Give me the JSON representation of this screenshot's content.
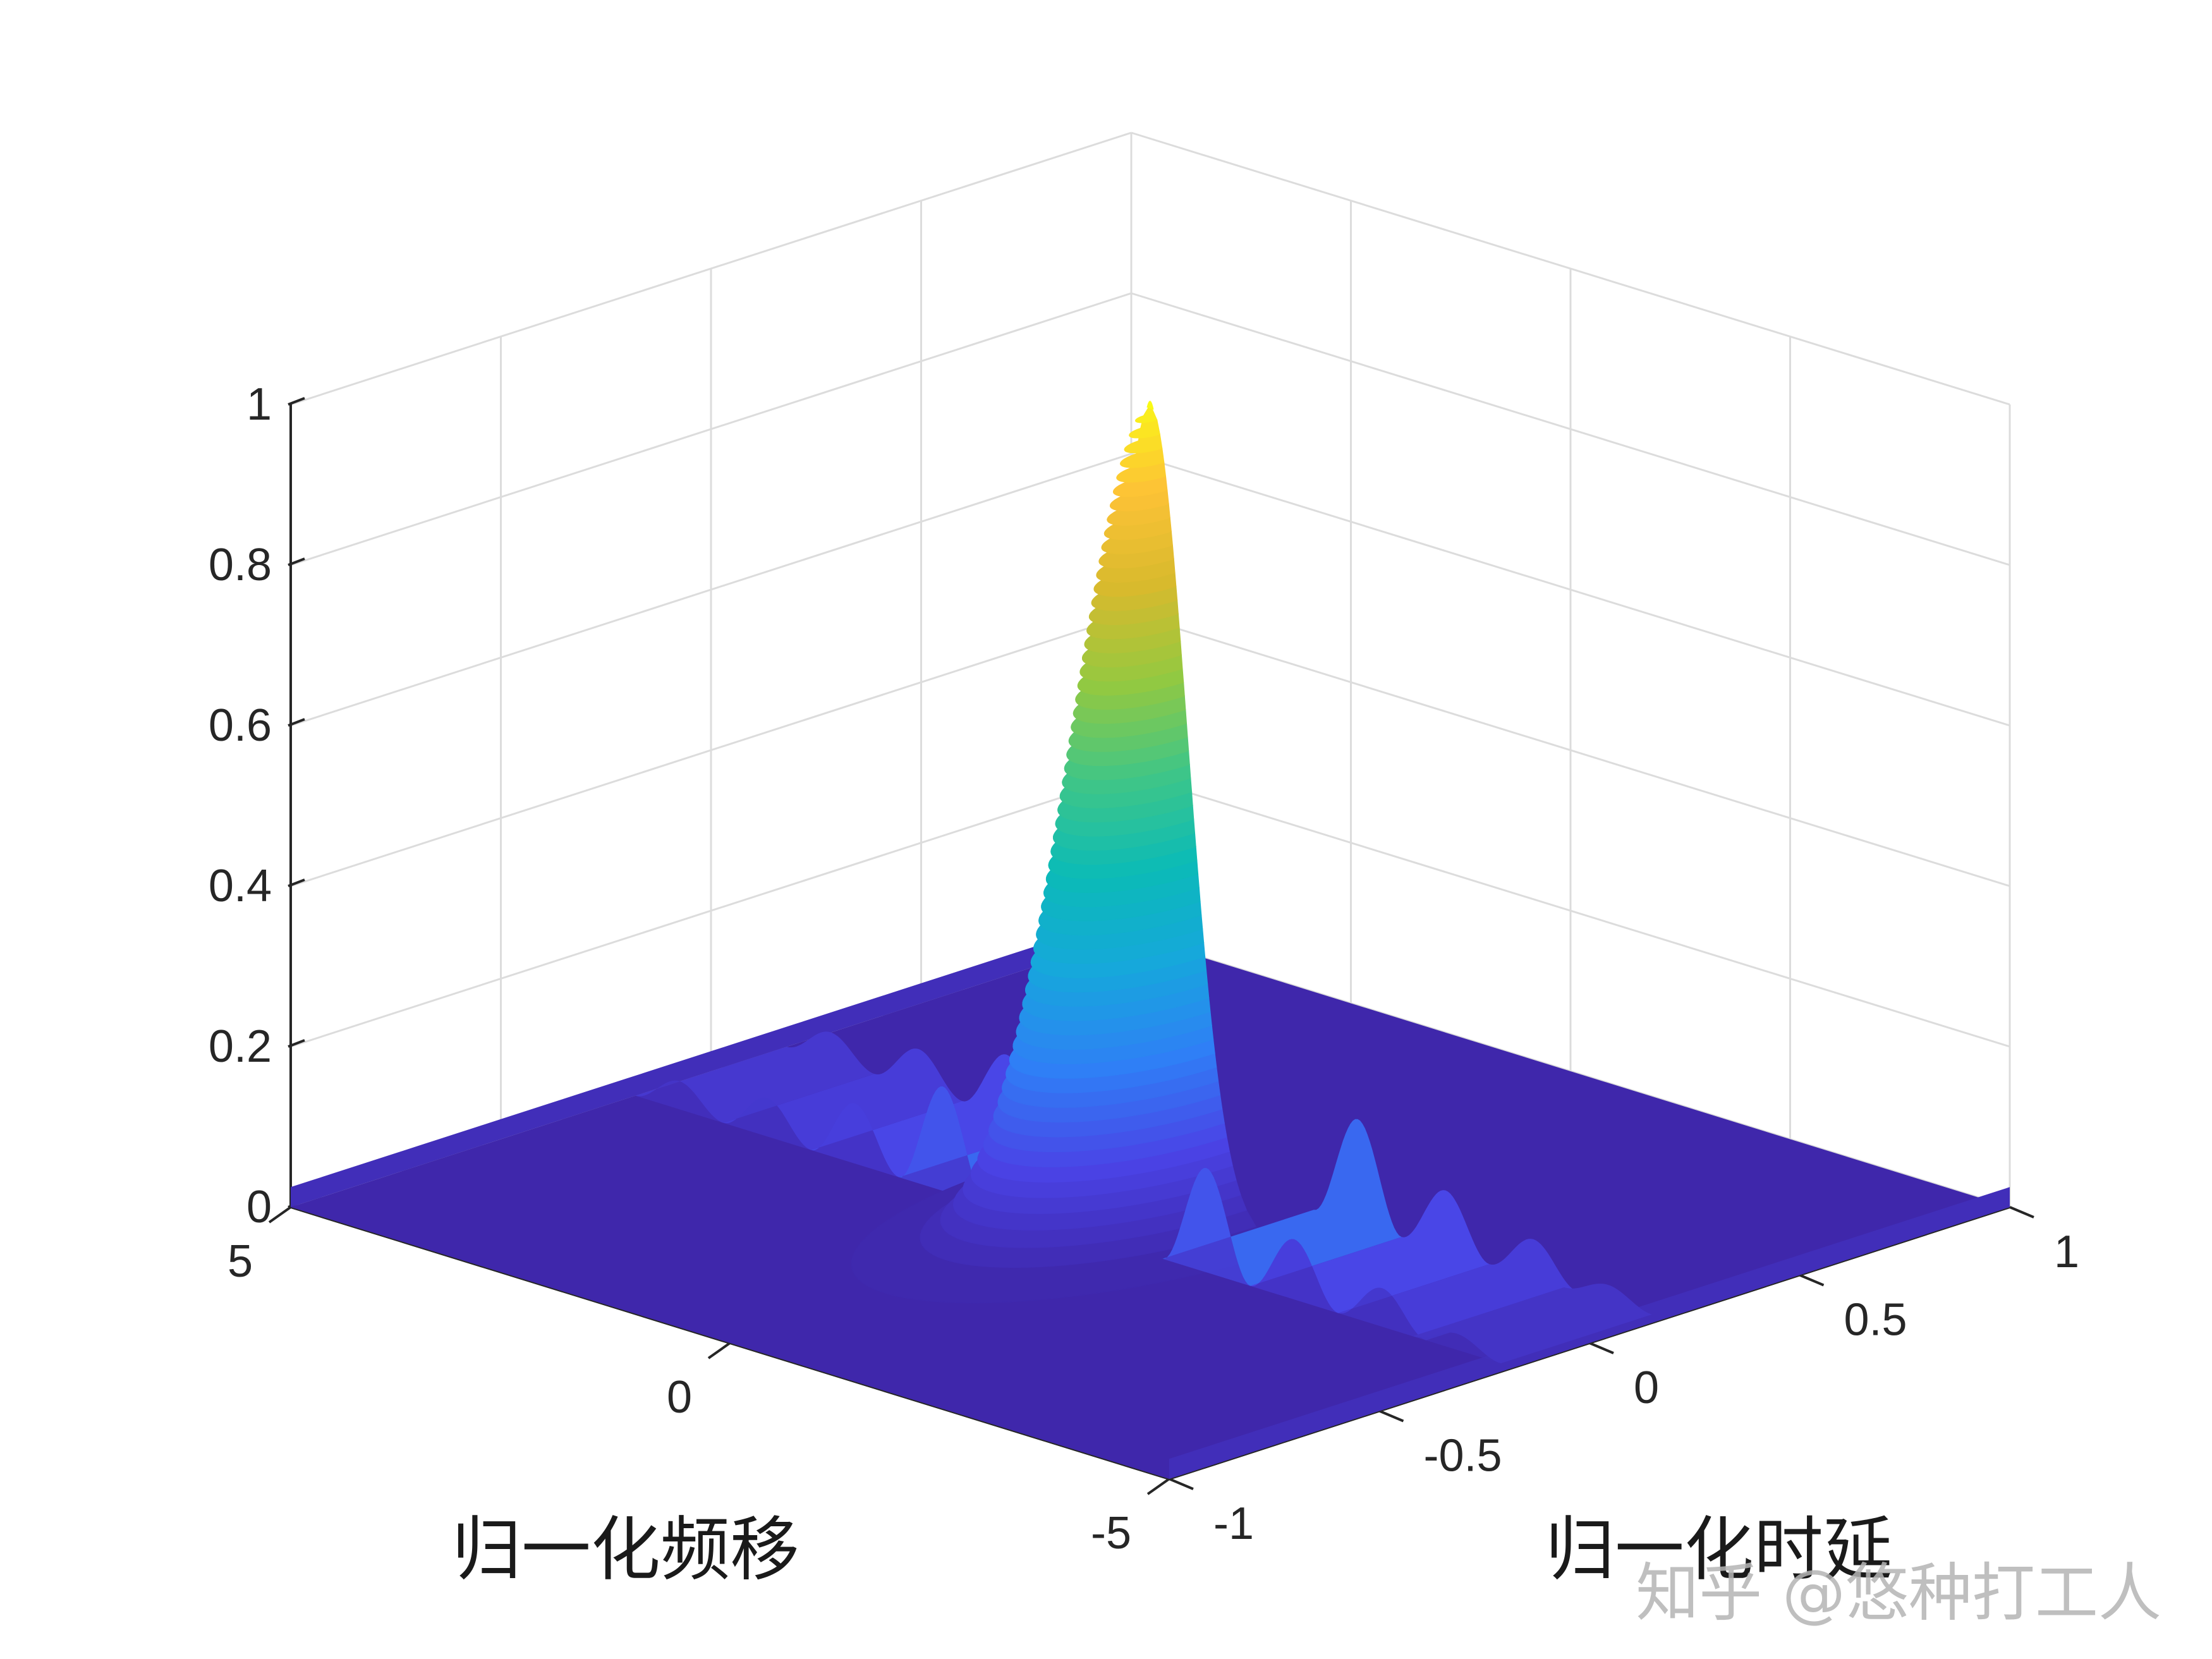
{
  "chart_data": {
    "type": "surface",
    "title": "",
    "xlabel": "归一化频移",
    "ylabel": "归一化时延",
    "zlabel": "",
    "x_range": [
      -5,
      5
    ],
    "y_range": [
      -1,
      1
    ],
    "zlim": [
      0,
      1
    ],
    "x_ticks": [
      {
        "value": 5,
        "label": "5"
      },
      {
        "value": 0,
        "label": "0"
      },
      {
        "value": -5,
        "label": "-5"
      }
    ],
    "y_ticks": [
      {
        "value": -1,
        "label": "-1"
      },
      {
        "value": -0.5,
        "label": "-0.5"
      },
      {
        "value": 0,
        "label": "0"
      },
      {
        "value": 0.5,
        "label": "0.5"
      },
      {
        "value": 1,
        "label": "1"
      }
    ],
    "z_ticks": [
      {
        "value": 0,
        "label": "0"
      },
      {
        "value": 0.2,
        "label": "0.2"
      },
      {
        "value": 0.4,
        "label": "0.4"
      },
      {
        "value": 0.6,
        "label": "0.6"
      },
      {
        "value": 0.8,
        "label": "0.8"
      },
      {
        "value": 1,
        "label": "1"
      }
    ],
    "grid": true,
    "colormap": "parula",
    "colormap_stops": [
      "#3e26a8",
      "#4a43e6",
      "#2f7ff6",
      "#16a7dc",
      "#0bbbb7",
      "#40c686",
      "#94c940",
      "#d8ba2d",
      "#fdc236",
      "#f9fb15"
    ],
    "peak": {
      "x": 0,
      "y": 0,
      "z": 1
    },
    "sidelobes_along_x_at_y0": [
      {
        "x": -4.35,
        "z": 0.02
      },
      {
        "x": -3.5,
        "z": 0.048
      },
      {
        "x": -2.5,
        "z": 0.075
      },
      {
        "x": -1.5,
        "z": 0.13
      },
      {
        "x": 1.5,
        "z": 0.13
      },
      {
        "x": 2.5,
        "z": 0.075
      },
      {
        "x": 3.5,
        "z": 0.048
      },
      {
        "x": 4.5,
        "z": 0.035
      }
    ],
    "edge_ridges_along_y_at_x": [
      {
        "x": 5,
        "z": 0.025
      },
      {
        "x": -5,
        "z": 0.025
      }
    ]
  },
  "watermark": "知乎 @悠种打工人"
}
